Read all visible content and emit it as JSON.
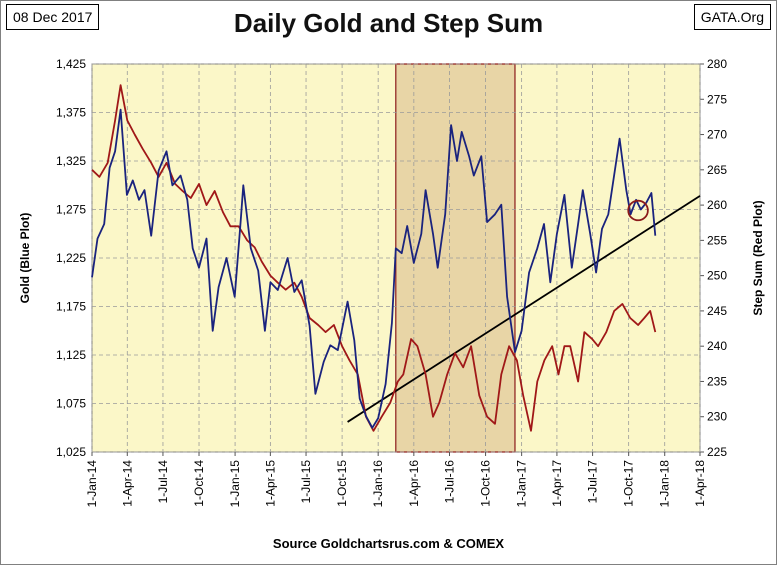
{
  "header": {
    "date_label": "08 Dec 2017",
    "site_label": "GATA.Org"
  },
  "chart_data": {
    "type": "line",
    "title": "Daily Gold and Step Sum",
    "source": "Source Goldchartsrus.com & COMEX",
    "ylabel_left": "Gold   (Blue Plot)",
    "ylabel_right": "Step Sum   (Red Plot)",
    "ylim_left": [
      1025,
      1425
    ],
    "ylim_right": [
      225,
      280
    ],
    "yticks_left": [
      "1,025",
      "1,075",
      "1,125",
      "1,175",
      "1,225",
      "1,275",
      "1,325",
      "1,375",
      "1,425"
    ],
    "yticks_right": [
      "225",
      "230",
      "235",
      "240",
      "245",
      "250",
      "255",
      "260",
      "265",
      "270",
      "275",
      "280"
    ],
    "xticks": [
      "1-Jan-14",
      "1-Apr-14",
      "1-Jul-14",
      "1-Oct-14",
      "1-Jan-15",
      "1-Apr-15",
      "1-Jul-15",
      "1-Oct-15",
      "1-Jan-16",
      "1-Apr-16",
      "1-Jul-16",
      "1-Oct-16",
      "1-Jan-17",
      "1-Apr-17",
      "1-Jul-17",
      "1-Oct-17",
      "1-Jan-18",
      "1-Apr-18"
    ],
    "xlim": [
      "2014-01-01",
      "2018-04-01"
    ],
    "grid": true,
    "background_color": "#fbf7c8",
    "shaded_region": {
      "start": "2016-02-15",
      "end": "2016-12-15",
      "color": "#e8d5a6",
      "border": "#8b1a1a"
    },
    "trendline": {
      "start": {
        "x": "2015-10-15",
        "y": 1056
      },
      "end": {
        "x": "2018-04-01",
        "y": 1289
      },
      "color": "#000000"
    },
    "circle_annotation": {
      "center": {
        "x": "2017-10-25",
        "y": 1274
      },
      "radius_days": 25,
      "color": "#8b1a1a"
    },
    "series": [
      {
        "name": "Gold",
        "axis": "left",
        "color": "#1a237e",
        "points": [
          [
            "2014-01-01",
            1205
          ],
          [
            "2014-01-15",
            1245
          ],
          [
            "2014-02-01",
            1260
          ],
          [
            "2014-02-15",
            1318
          ],
          [
            "2014-03-01",
            1335
          ],
          [
            "2014-03-15",
            1378
          ],
          [
            "2014-03-31",
            1290
          ],
          [
            "2014-04-15",
            1305
          ],
          [
            "2014-05-01",
            1285
          ],
          [
            "2014-05-15",
            1295
          ],
          [
            "2014-06-01",
            1248
          ],
          [
            "2014-06-20",
            1315
          ],
          [
            "2014-07-10",
            1335
          ],
          [
            "2014-07-25",
            1300
          ],
          [
            "2014-08-15",
            1310
          ],
          [
            "2014-09-01",
            1285
          ],
          [
            "2014-09-15",
            1235
          ],
          [
            "2014-10-01",
            1215
          ],
          [
            "2014-10-20",
            1245
          ],
          [
            "2014-11-05",
            1150
          ],
          [
            "2014-11-20",
            1195
          ],
          [
            "2014-12-10",
            1225
          ],
          [
            "2014-12-31",
            1185
          ],
          [
            "2015-01-15",
            1262
          ],
          [
            "2015-01-22",
            1300
          ],
          [
            "2015-02-10",
            1235
          ],
          [
            "2015-03-01",
            1212
          ],
          [
            "2015-03-18",
            1150
          ],
          [
            "2015-04-01",
            1200
          ],
          [
            "2015-04-20",
            1192
          ],
          [
            "2015-05-15",
            1225
          ],
          [
            "2015-06-01",
            1190
          ],
          [
            "2015-06-20",
            1202
          ],
          [
            "2015-07-10",
            1155
          ],
          [
            "2015-07-25",
            1085
          ],
          [
            "2015-08-15",
            1118
          ],
          [
            "2015-09-01",
            1135
          ],
          [
            "2015-09-20",
            1130
          ],
          [
            "2015-10-15",
            1180
          ],
          [
            "2015-11-01",
            1140
          ],
          [
            "2015-11-15",
            1080
          ],
          [
            "2015-12-01",
            1062
          ],
          [
            "2015-12-17",
            1050
          ],
          [
            "2016-01-01",
            1060
          ],
          [
            "2016-01-20",
            1095
          ],
          [
            "2016-02-05",
            1158
          ],
          [
            "2016-02-15",
            1235
          ],
          [
            "2016-03-01",
            1230
          ],
          [
            "2016-03-15",
            1258
          ],
          [
            "2016-04-01",
            1220
          ],
          [
            "2016-04-20",
            1250
          ],
          [
            "2016-05-01",
            1295
          ],
          [
            "2016-05-20",
            1250
          ],
          [
            "2016-06-01",
            1215
          ],
          [
            "2016-06-20",
            1270
          ],
          [
            "2016-07-05",
            1362
          ],
          [
            "2016-07-20",
            1325
          ],
          [
            "2016-08-01",
            1355
          ],
          [
            "2016-08-20",
            1330
          ],
          [
            "2016-09-01",
            1310
          ],
          [
            "2016-09-20",
            1330
          ],
          [
            "2016-10-05",
            1262
          ],
          [
            "2016-10-25",
            1270
          ],
          [
            "2016-11-10",
            1280
          ],
          [
            "2016-11-25",
            1185
          ],
          [
            "2016-12-15",
            1128
          ],
          [
            "2017-01-01",
            1150
          ],
          [
            "2017-01-20",
            1210
          ],
          [
            "2017-02-10",
            1235
          ],
          [
            "2017-02-27",
            1260
          ],
          [
            "2017-03-15",
            1200
          ],
          [
            "2017-04-01",
            1250
          ],
          [
            "2017-04-20",
            1290
          ],
          [
            "2017-05-09",
            1215
          ],
          [
            "2017-05-25",
            1260
          ],
          [
            "2017-06-06",
            1295
          ],
          [
            "2017-06-25",
            1250
          ],
          [
            "2017-07-10",
            1210
          ],
          [
            "2017-07-25",
            1255
          ],
          [
            "2017-08-10",
            1270
          ],
          [
            "2017-09-08",
            1348
          ],
          [
            "2017-09-25",
            1295
          ],
          [
            "2017-10-06",
            1270
          ],
          [
            "2017-10-20",
            1285
          ],
          [
            "2017-11-01",
            1275
          ],
          [
            "2017-11-15",
            1282
          ],
          [
            "2017-11-28",
            1292
          ],
          [
            "2017-12-08",
            1248
          ]
        ]
      },
      {
        "name": "Step Sum",
        "axis": "right",
        "color": "#a01818",
        "points": [
          [
            "2014-01-01",
            265
          ],
          [
            "2014-01-20",
            264
          ],
          [
            "2014-02-10",
            266
          ],
          [
            "2014-03-01",
            272
          ],
          [
            "2014-03-15",
            277
          ],
          [
            "2014-04-01",
            272
          ],
          [
            "2014-04-20",
            270
          ],
          [
            "2014-05-10",
            268
          ],
          [
            "2014-06-01",
            266
          ],
          [
            "2014-06-20",
            264
          ],
          [
            "2014-07-10",
            266
          ],
          [
            "2014-08-01",
            263
          ],
          [
            "2014-08-20",
            262
          ],
          [
            "2014-09-10",
            261
          ],
          [
            "2014-10-01",
            263
          ],
          [
            "2014-10-20",
            260
          ],
          [
            "2014-11-10",
            262
          ],
          [
            "2014-12-01",
            259
          ],
          [
            "2014-12-20",
            257
          ],
          [
            "2015-01-10",
            257
          ],
          [
            "2015-02-01",
            255
          ],
          [
            "2015-02-20",
            254
          ],
          [
            "2015-03-10",
            252
          ],
          [
            "2015-04-01",
            250
          ],
          [
            "2015-04-20",
            249
          ],
          [
            "2015-05-10",
            248
          ],
          [
            "2015-06-01",
            249
          ],
          [
            "2015-06-20",
            247
          ],
          [
            "2015-07-10",
            244
          ],
          [
            "2015-08-01",
            243
          ],
          [
            "2015-08-20",
            242
          ],
          [
            "2015-09-10",
            243
          ],
          [
            "2015-10-01",
            240
          ],
          [
            "2015-10-20",
            238
          ],
          [
            "2015-11-10",
            236
          ],
          [
            "2015-12-01",
            230
          ],
          [
            "2015-12-20",
            228
          ],
          [
            "2016-01-10",
            230
          ],
          [
            "2016-02-01",
            232
          ],
          [
            "2016-02-20",
            235
          ],
          [
            "2016-03-05",
            236
          ],
          [
            "2016-03-25",
            241
          ],
          [
            "2016-04-10",
            240
          ],
          [
            "2016-05-01",
            236
          ],
          [
            "2016-05-20",
            230
          ],
          [
            "2016-06-05",
            232
          ],
          [
            "2016-06-25",
            236
          ],
          [
            "2016-07-15",
            239
          ],
          [
            "2016-08-05",
            237
          ],
          [
            "2016-08-25",
            240
          ],
          [
            "2016-09-15",
            233
          ],
          [
            "2016-10-05",
            230
          ],
          [
            "2016-10-25",
            229
          ],
          [
            "2016-11-10",
            236
          ],
          [
            "2016-11-30",
            240
          ],
          [
            "2016-12-20",
            238
          ],
          [
            "2017-01-05",
            233
          ],
          [
            "2017-01-25",
            228
          ],
          [
            "2017-02-10",
            235
          ],
          [
            "2017-02-28",
            238
          ],
          [
            "2017-03-20",
            240
          ],
          [
            "2017-04-05",
            236
          ],
          [
            "2017-04-20",
            240
          ],
          [
            "2017-05-05",
            240
          ],
          [
            "2017-05-25",
            235
          ],
          [
            "2017-06-10",
            242
          ],
          [
            "2017-06-30",
            241
          ],
          [
            "2017-07-15",
            240
          ],
          [
            "2017-08-05",
            242
          ],
          [
            "2017-08-25",
            245
          ],
          [
            "2017-09-15",
            246
          ],
          [
            "2017-10-05",
            244
          ],
          [
            "2017-10-25",
            243
          ],
          [
            "2017-11-10",
            244
          ],
          [
            "2017-11-25",
            245
          ],
          [
            "2017-12-08",
            242
          ]
        ]
      }
    ]
  }
}
